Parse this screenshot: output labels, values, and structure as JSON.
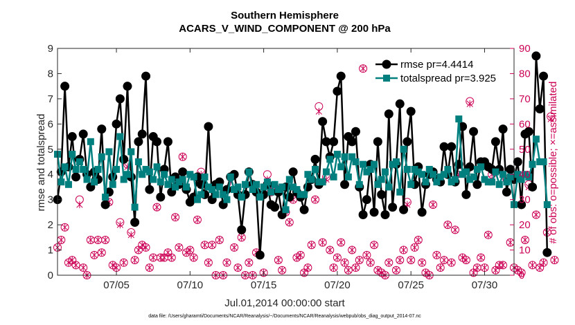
{
  "chart_data": {
    "type": "line",
    "title": "Southern Hemisphere",
    "subtitle": "ACARS_V_WIND_COMPONENT @ 200 hPa",
    "xlabel": "Jul.01,2014 00:00:00 start",
    "ylabel": "rmse and totalspread",
    "ylabel_right": "# of obs: o=possible; ×=assimilated",
    "footer": "data file: /Users/gharamti/Documents/NCAR/Reanalysis/~/Documents/NCAR/Reanalysis/webpub/obs_diag_output_2014-07.nc",
    "xlim": [
      1,
      32
    ],
    "ylim": [
      0,
      9
    ],
    "ylim_right": [
      0,
      90
    ],
    "x_ticks": [
      5,
      10,
      15,
      20,
      25,
      30
    ],
    "x_tick_labels": [
      "07/05",
      "07/10",
      "07/15",
      "07/20",
      "07/25",
      "07/30"
    ],
    "y_ticks": [
      0,
      1,
      2,
      3,
      4,
      5,
      6,
      7,
      8,
      9
    ],
    "y_tick_labels": [
      "0",
      "1",
      "2",
      "3",
      "4",
      "5",
      "6",
      "7",
      "8",
      "9"
    ],
    "y_right_ticks": [
      0,
      10,
      20,
      30,
      40,
      50,
      60,
      70,
      80,
      90
    ],
    "y_right_tick_labels": [
      "0",
      "10",
      "20",
      "30",
      "40",
      "50",
      "60",
      "70",
      "80",
      "90"
    ],
    "legend": {
      "position": "top-right",
      "entries": [
        "rmse pr=4.4414",
        "totalspread pr=3.925"
      ]
    },
    "colors": {
      "rmse": "#000000",
      "spread": "#007f7f",
      "obs": "#cc0055"
    },
    "series": [
      {
        "name": "rmse",
        "time_start": 1.0,
        "time_step": 0.25,
        "values": [
          3.0,
          4.1,
          7.5,
          4.3,
          5.5,
          3.9,
          4.6,
          5.6,
          4.0,
          3.5,
          4.1,
          3.8,
          5.8,
          2.8,
          3.3,
          3.9,
          6.0,
          7.0,
          4.6,
          7.5,
          3.9,
          2.1,
          5.3,
          5.6,
          7.9,
          3.4,
          5.5,
          5.3,
          3.1,
          4.2,
          5.3,
          3.3,
          3.9,
          3.6,
          4.1,
          3.4,
          2.9,
          3.1,
          3.9,
          3.6,
          3.2,
          5.9,
          3.0,
          3.6,
          3.7,
          2.8,
          3.4,
          3.9,
          4.0,
          3.2,
          1.8,
          3.2,
          4.1,
          3.6,
          3.3,
          0.8,
          3.2,
          3.6,
          2.8,
          2.7,
          3.3,
          2.4,
          3.5,
          3.1,
          4.1,
          3.3,
          3.1,
          2.6,
          3.5,
          3.8,
          4.6,
          3.6,
          6.1,
          5.3,
          4.7,
          5.3,
          7.3,
          7.9,
          3.6,
          5.5,
          5.3,
          5.7,
          3.5,
          2.4,
          3.0,
          4.4,
          2.5,
          5.3,
          3.2,
          2.4,
          6.4,
          2.7,
          4.4,
          6.8,
          2.6,
          5.3,
          6.5,
          3.6,
          4.3,
          2.5,
          3.6,
          4.0,
          4.1,
          3.8,
          3.7,
          5.1,
          4.0,
          5.1,
          3.7,
          4.4,
          5.9,
          3.2,
          4.3,
          5.7,
          3.6,
          4.5,
          4.5,
          4.3,
          4.2,
          5.3,
          4.2,
          5.8,
          3.3,
          4.2,
          3.8,
          4.5,
          2.8,
          5.6,
          5.7,
          3.5,
          8.7,
          6.6,
          7.9,
          0.9
        ]
      },
      {
        "name": "totalspread",
        "time_start": 1.0,
        "time_step": 0.25,
        "values": [
          4.8,
          3.7,
          4.3,
          3.6,
          4.8,
          4.2,
          4.5,
          4.2,
          3.8,
          5.3,
          3.7,
          4.2,
          4.7,
          3.1,
          4.9,
          3.6,
          4.2,
          5.5,
          3.8,
          4.0,
          4.9,
          2.7,
          4.5,
          4.0,
          4.2,
          4.1,
          3.8,
          4.3,
          3.7,
          4.0,
          3.6,
          3.8,
          3.5,
          3.7,
          3.8,
          3.5,
          4.0,
          3.9,
          3.0,
          3.2,
          3.9,
          3.5,
          3.4,
          3.2,
          3.5,
          3.2,
          3.0,
          3.9,
          3.4,
          3.5,
          3.1,
          3.6,
          4.1,
          3.4,
          3.6,
          3.1,
          3.5,
          3.7,
          3.3,
          3.6,
          3.4,
          3.5,
          2.6,
          3.8,
          3.5,
          3.4,
          3.2,
          3.2,
          4.0,
          3.8,
          4.2,
          3.7,
          3.7,
          4.1,
          4.6,
          3.9,
          4.8,
          4.3,
          4.7,
          3.9,
          4.7,
          4.5,
          3.6,
          4.4,
          4.1,
          4.2,
          4.4,
          3.6,
          3.8,
          4.1,
          3.5,
          4.4,
          4.5,
          3.3,
          5.0,
          4.2,
          3.6,
          4.2,
          4.1,
          4.0,
          3.7,
          4.2,
          4.0,
          3.7,
          3.9,
          4.0,
          4.2,
          3.7,
          3.8,
          6.2,
          4.0,
          4.1,
          3.8,
          3.9,
          4.2,
          4.3,
          3.8,
          3.7,
          3.7,
          4.1,
          3.6,
          4.0,
          3.7,
          3.9,
          2.8,
          4.0,
          3.8,
          4.0,
          3.9,
          4.4,
          5.4,
          4.5,
          4.5,
          2.8
        ]
      },
      {
        "name": "possible",
        "time_start": 1.0,
        "time_step": 0.25,
        "values": [
          11,
          14,
          19,
          5,
          6,
          4,
          30,
          3,
          0,
          14,
          8,
          14,
          9,
          14,
          29,
          4,
          3,
          21,
          5,
          44,
          17,
          6,
          10,
          12,
          11,
          3,
          7,
          27,
          7,
          7,
          9,
          7,
          23,
          11,
          47,
          9,
          10,
          7,
          22,
          41,
          12,
          5,
          12,
          0,
          14,
          0,
          5,
          39,
          11,
          3,
          15,
          0,
          5,
          0,
          9,
          8,
          1,
          40,
          33,
          35,
          6,
          2,
          25,
          21,
          30,
          7,
          8,
          1,
          3,
          12,
          30,
          67,
          13,
          39,
          10,
          3,
          7,
          13,
          5,
          2,
          10,
          3,
          6,
          82,
          8,
          5,
          12,
          2,
          1,
          0,
          5,
          27,
          2,
          6,
          10,
          29,
          6,
          11,
          14,
          5,
          1,
          0,
          28,
          8,
          3,
          6,
          20,
          5,
          18,
          41,
          7,
          6,
          69,
          1,
          3,
          7,
          3,
          16,
          40,
          2,
          4,
          4,
          38,
          13,
          3,
          2,
          1,
          14,
          36,
          4,
          24,
          3,
          5,
          17,
          63,
          6
        ]
      },
      {
        "name": "assimilated",
        "time_start": 1.0,
        "time_step": 0.25,
        "values": [
          11,
          14,
          19,
          5,
          6,
          4,
          28,
          3,
          0,
          14,
          8,
          14,
          9,
          14,
          29,
          4,
          3,
          20,
          5,
          43,
          16,
          6,
          10,
          12,
          11,
          3,
          7,
          27,
          7,
          7,
          9,
          7,
          23,
          11,
          47,
          9,
          10,
          7,
          22,
          40,
          12,
          5,
          12,
          0,
          14,
          0,
          5,
          37,
          11,
          3,
          15,
          0,
          5,
          0,
          9,
          8,
          1,
          38,
          33,
          35,
          6,
          2,
          25,
          21,
          30,
          7,
          8,
          1,
          3,
          12,
          30,
          65,
          13,
          38,
          10,
          3,
          7,
          13,
          5,
          2,
          10,
          3,
          6,
          82,
          8,
          5,
          12,
          2,
          1,
          0,
          5,
          27,
          2,
          6,
          10,
          28,
          6,
          11,
          14,
          5,
          1,
          0,
          28,
          8,
          3,
          6,
          20,
          5,
          18,
          40,
          7,
          6,
          68,
          1,
          3,
          7,
          3,
          16,
          40,
          2,
          4,
          4,
          37,
          13,
          3,
          2,
          1,
          14,
          35,
          4,
          24,
          3,
          5,
          17,
          62,
          6
        ]
      }
    ]
  }
}
